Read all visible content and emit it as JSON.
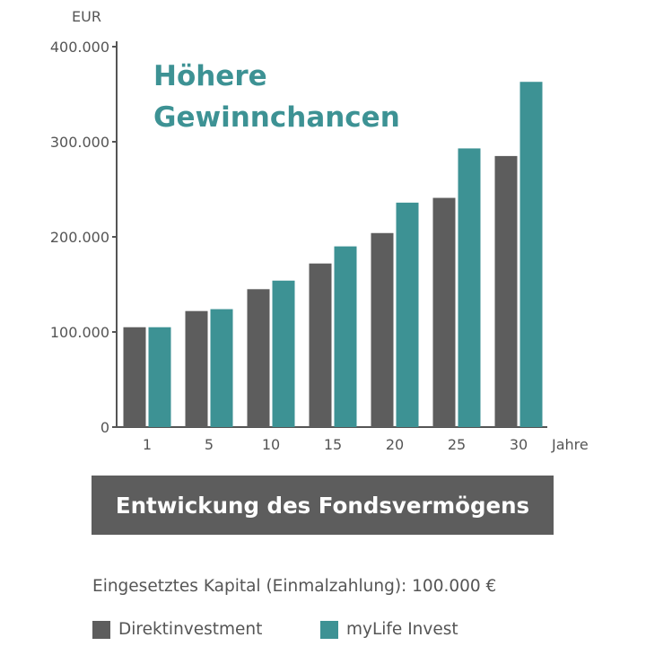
{
  "colors": {
    "direkt": "#5d5d5d",
    "mylife": "#3d9294",
    "axis": "#555555"
  },
  "headline": {
    "line1": "Höhere",
    "line2": "Gewinnchancen"
  },
  "banner": "Entwickung des Fondsvermögens",
  "capital_note": "Eingesetztes Kapital (Einmalzahlung): 100.000 €",
  "chart_data": {
    "type": "bar",
    "ylabel": "EUR",
    "xlabel": "Jahre",
    "ylim": [
      0,
      400000
    ],
    "yticks": [
      0,
      100000,
      200000,
      300000,
      400000
    ],
    "ytick_labels": [
      "0",
      "100.000",
      "200.000",
      "300.000",
      "400.000"
    ],
    "categories": [
      "1",
      "5",
      "10",
      "15",
      "20",
      "25",
      "30"
    ],
    "series": [
      {
        "name": "Direktinvestment",
        "values": [
          105000,
          122000,
          145000,
          172000,
          204000,
          241000,
          285000
        ]
      },
      {
        "name": "myLife Invest",
        "values": [
          105000,
          124000,
          154000,
          190000,
          236000,
          293000,
          363000
        ]
      }
    ],
    "grid": false,
    "legend_position": "bottom"
  }
}
